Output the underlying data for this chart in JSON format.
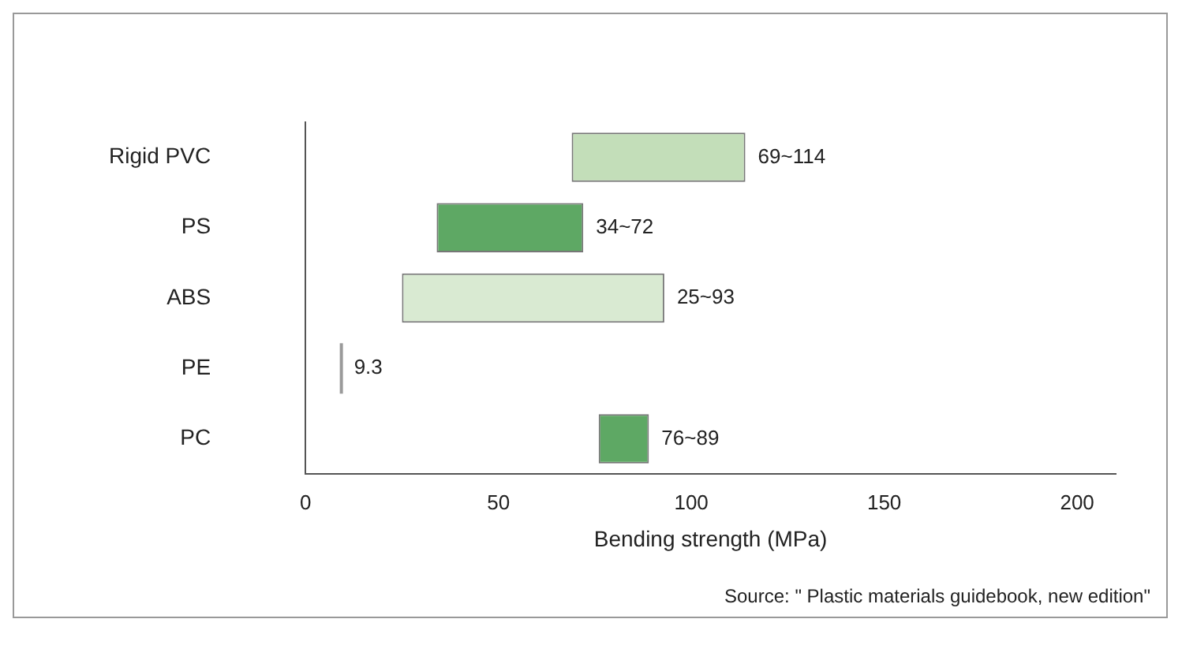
{
  "chart_data": {
    "type": "bar",
    "orientation": "horizontal",
    "xlabel": "Bending strength (MPa)",
    "categories": [
      "Rigid PVC",
      "PS",
      "ABS",
      "PE",
      "PC"
    ],
    "base": [
      69,
      34,
      25,
      9.3,
      76
    ],
    "values": [
      45,
      38,
      68,
      0,
      13
    ],
    "colors": [
      "#c3deb9",
      "#5ea864",
      "#d9ead2",
      "#9a9a9a",
      "#5ea864"
    ],
    "xlim": [
      0,
      210
    ],
    "xticks": [
      0,
      50,
      100,
      150,
      200
    ],
    "grid": false,
    "legend": false,
    "annotations": [
      {
        "text": "69~114",
        "x": 114,
        "y": "Rigid PVC"
      },
      {
        "text": "34~72",
        "x": 72,
        "y": "PS"
      },
      {
        "text": "25~93",
        "x": 93,
        "y": "ABS"
      },
      {
        "text": "9.3",
        "x": 9.3,
        "y": "PE"
      },
      {
        "text": "76~89",
        "x": 89,
        "y": "PC"
      },
      "Source: \" Plastic materials guidebook, new edition\""
    ]
  }
}
